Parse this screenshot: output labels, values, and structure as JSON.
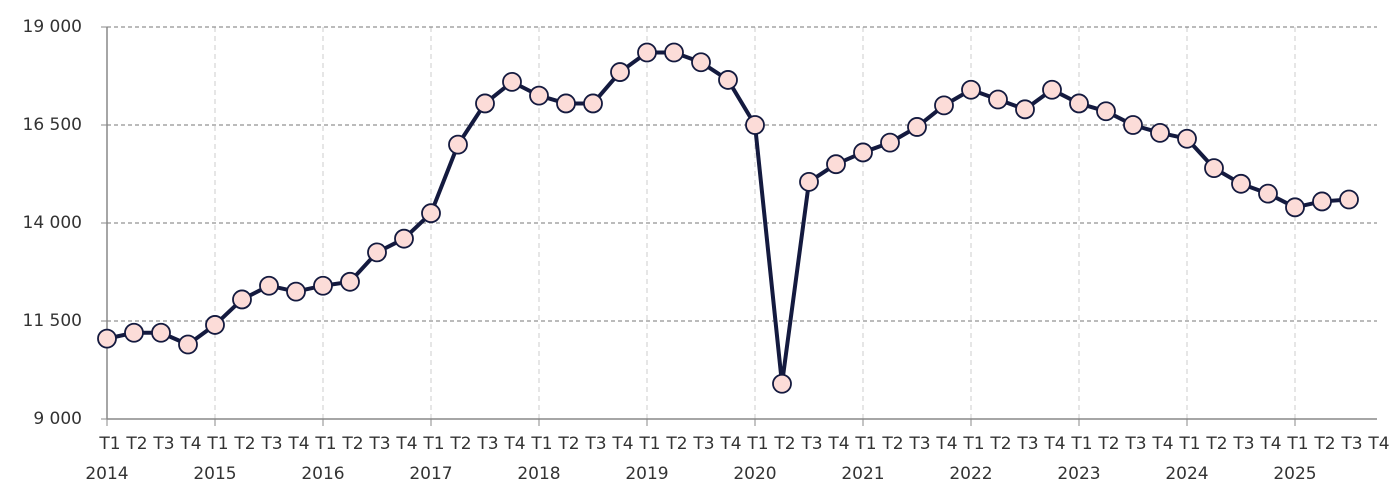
{
  "chart_data": {
    "type": "line",
    "categories": [
      "T1",
      "T2",
      "T3",
      "T4",
      "T1",
      "T2",
      "T3",
      "T4",
      "T1",
      "T2",
      "T3",
      "T4",
      "T1",
      "T2",
      "T3",
      "T4",
      "T1",
      "T2",
      "T3",
      "T4",
      "T1",
      "T2",
      "T3",
      "T4",
      "T1",
      "T2",
      "T3",
      "T4",
      "T1",
      "T2",
      "T3",
      "T4",
      "T1",
      "T2",
      "T3",
      "T4",
      "T1",
      "T2",
      "T3",
      "T4",
      "T1",
      "T2",
      "T3",
      "T4",
      "T1",
      "T2",
      "T3",
      "T4"
    ],
    "year_labels": [
      "2014",
      "2015",
      "2016",
      "2017",
      "2018",
      "2019",
      "2020",
      "2021",
      "2022",
      "2023",
      "2024",
      "2025"
    ],
    "series": [
      {
        "color": "#141a3f",
        "marker_color": "#fcdcd8",
        "values": [
          11050,
          11200,
          11200,
          10900,
          11400,
          12050,
          12400,
          12250,
          12400,
          12500,
          13250,
          13600,
          14250,
          16000,
          17050,
          17600,
          17250,
          17050,
          17050,
          17850,
          18350,
          18350,
          18100,
          17650,
          16500,
          9900,
          15050,
          15500,
          15800,
          16050,
          16450,
          17000,
          17400,
          17150,
          16900,
          17400,
          17050,
          16850,
          16500,
          16300,
          16150,
          15400,
          15000,
          14750,
          14400,
          14550,
          14600,
          null
        ]
      }
    ],
    "ylim": [
      9000,
      19000
    ],
    "yticks": [
      {
        "value": 9000,
        "label": "9 000"
      },
      {
        "value": 11500,
        "label": "11 500"
      },
      {
        "value": 14000,
        "label": "14 000"
      },
      {
        "value": 16500,
        "label": "16 500"
      },
      {
        "value": 19000,
        "label": "19 000"
      }
    ],
    "grid": true
  }
}
